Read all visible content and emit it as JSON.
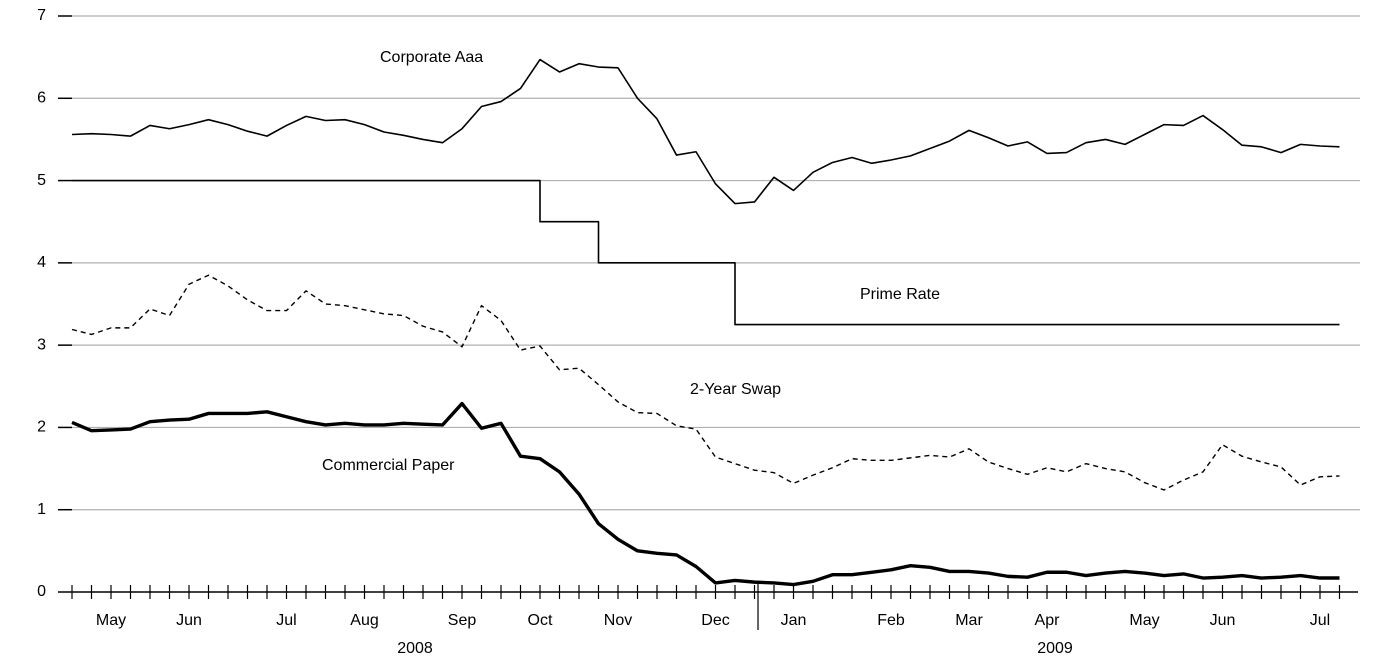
{
  "chart_data": {
    "type": "line",
    "categories": [
      null,
      null,
      "May",
      null,
      null,
      null,
      "Jun",
      null,
      null,
      null,
      null,
      "Jul",
      null,
      null,
      null,
      "Aug",
      null,
      null,
      null,
      null,
      "Sep",
      null,
      null,
      null,
      "Oct",
      null,
      null,
      null,
      "Nov",
      null,
      null,
      null,
      null,
      "Dec",
      null,
      null,
      null,
      "Jan",
      null,
      null,
      null,
      null,
      "Feb",
      null,
      null,
      null,
      "Mar",
      null,
      null,
      null,
      "Apr",
      null,
      null,
      null,
      null,
      "May",
      null,
      null,
      null,
      "Jun",
      null,
      null,
      null,
      null,
      "Jul",
      null
    ],
    "year_labels": [
      "2008",
      "2009"
    ],
    "series": [
      {
        "name": "Corporate Aaa",
        "color": "#000000",
        "style": "solid",
        "width": 1.6,
        "values": [
          5.56,
          5.57,
          5.56,
          5.54,
          5.67,
          5.63,
          5.68,
          5.74,
          5.68,
          5.6,
          5.54,
          5.67,
          5.78,
          5.73,
          5.74,
          5.68,
          5.59,
          5.55,
          5.5,
          5.46,
          5.63,
          5.9,
          5.96,
          6.12,
          6.47,
          6.32,
          6.42,
          6.38,
          6.37,
          6.0,
          5.75,
          5.31,
          5.35,
          4.96,
          4.72,
          4.74,
          5.04,
          4.88,
          5.1,
          5.22,
          5.28,
          5.21,
          5.25,
          5.3,
          5.39,
          5.48,
          5.61,
          5.52,
          5.42,
          5.47,
          5.33,
          5.34,
          5.46,
          5.5,
          5.44,
          5.56,
          5.68,
          5.67,
          5.79,
          5.62,
          5.43,
          5.41,
          5.34,
          5.44,
          5.42,
          5.41
        ]
      },
      {
        "name": "Prime Rate",
        "color": "#000000",
        "style": "step",
        "width": 1.6,
        "values": [
          5,
          5,
          5,
          5,
          5,
          5,
          5,
          5,
          5,
          5,
          5,
          5,
          5,
          5,
          5,
          5,
          5,
          5,
          5,
          5,
          5,
          5,
          5,
          5,
          4.5,
          4.5,
          4.5,
          4,
          4,
          4,
          4,
          4,
          4,
          4,
          3.25,
          3.25,
          3.25,
          3.25,
          3.25,
          3.25,
          3.25,
          3.25,
          3.25,
          3.25,
          3.25,
          3.25,
          3.25,
          3.25,
          3.25,
          3.25,
          3.25,
          3.25,
          3.25,
          3.25,
          3.25,
          3.25,
          3.25,
          3.25,
          3.25,
          3.25,
          3.25,
          3.25,
          3.25,
          3.25,
          3.25,
          3.25
        ]
      },
      {
        "name": "2-Year Swap",
        "color": "#000000",
        "style": "dashed",
        "width": 1.4,
        "values": [
          3.19,
          3.13,
          3.21,
          3.21,
          3.44,
          3.36,
          3.74,
          3.85,
          3.72,
          3.55,
          3.42,
          3.42,
          3.66,
          3.5,
          3.48,
          3.43,
          3.38,
          3.36,
          3.23,
          3.16,
          2.98,
          3.48,
          3.3,
          2.94,
          2.99,
          2.7,
          2.72,
          2.52,
          2.31,
          2.18,
          2.17,
          2.02,
          1.98,
          1.64,
          1.56,
          1.48,
          1.45,
          1.32,
          1.42,
          1.51,
          1.62,
          1.6,
          1.6,
          1.63,
          1.66,
          1.64,
          1.74,
          1.58,
          1.5,
          1.43,
          1.51,
          1.46,
          1.56,
          1.5,
          1.46,
          1.33,
          1.24,
          1.36,
          1.46,
          1.79,
          1.65,
          1.58,
          1.52,
          1.3,
          1.4,
          1.41
        ]
      },
      {
        "name": "Commercial Paper",
        "color": "#000000",
        "style": "solid",
        "width": 3.4,
        "values": [
          2.06,
          1.96,
          1.97,
          1.98,
          2.07,
          2.09,
          2.1,
          2.17,
          2.17,
          2.17,
          2.19,
          2.13,
          2.07,
          2.03,
          2.05,
          2.03,
          2.03,
          2.05,
          2.04,
          2.03,
          2.29,
          1.99,
          2.05,
          1.65,
          1.62,
          1.46,
          1.19,
          0.83,
          0.64,
          0.5,
          0.47,
          0.45,
          0.31,
          0.11,
          0.14,
          0.12,
          0.11,
          0.09,
          0.13,
          0.21,
          0.21,
          0.24,
          0.27,
          0.32,
          0.3,
          0.25,
          0.25,
          0.23,
          0.19,
          0.18,
          0.24,
          0.24,
          0.2,
          0.23,
          0.25,
          0.23,
          0.2,
          0.22,
          0.17,
          0.18,
          0.2,
          0.17,
          0.18,
          0.2,
          0.17,
          0.17
        ]
      }
    ],
    "ylim": [
      0,
      7
    ],
    "yticks": [
      0,
      1,
      2,
      3,
      4,
      5,
      6,
      7
    ],
    "grid": true
  }
}
